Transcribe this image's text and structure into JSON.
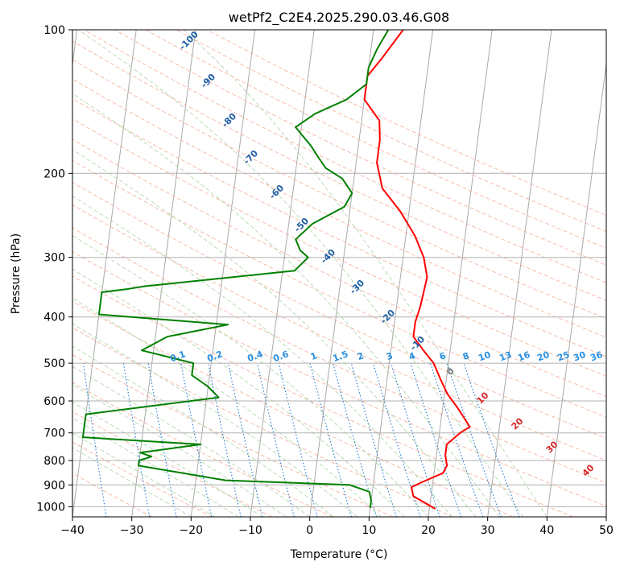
{
  "chart_data": {
    "type": "line",
    "title": "wetPf2_C2E4.2025.290.03.46.G08",
    "xlabel": "Temperature (°C)",
    "ylabel": "Pressure (hPa)",
    "xlim": [
      -40,
      50
    ],
    "ylim": [
      1050,
      100
    ],
    "y_scale": "log",
    "grid": true,
    "x_ticks": [
      "−40",
      "−30",
      "−20",
      "−10",
      "0",
      "10",
      "20",
      "30",
      "40",
      "50"
    ],
    "x_tick_values": [
      -40,
      -30,
      -20,
      -10,
      0,
      10,
      20,
      30,
      40,
      50
    ],
    "y_ticks": [
      "100",
      "200",
      "300",
      "400",
      "500",
      "600",
      "700",
      "800",
      "900",
      "1000"
    ],
    "y_tick_values": [
      100,
      200,
      300,
      400,
      500,
      600,
      700,
      800,
      900,
      1000
    ],
    "series": [
      {
        "color": "#ff0000",
        "points": [
          [
            21,
            1010
          ],
          [
            17,
            950
          ],
          [
            16.5,
            910
          ],
          [
            18,
            890
          ],
          [
            21.5,
            850
          ],
          [
            22,
            820
          ],
          [
            21.5,
            780
          ],
          [
            21.5,
            740
          ],
          [
            23.5,
            700
          ],
          [
            25,
            680
          ],
          [
            24,
            655
          ],
          [
            22.5,
            620
          ],
          [
            20.5,
            580
          ],
          [
            19,
            540
          ],
          [
            17.5,
            500
          ],
          [
            15.5,
            470
          ],
          [
            13.5,
            440
          ],
          [
            13.5,
            410
          ],
          [
            14,
            380
          ],
          [
            14.2,
            360
          ],
          [
            14.5,
            330
          ],
          [
            13.5,
            300
          ],
          [
            11.5,
            270
          ],
          [
            8.5,
            240
          ],
          [
            5,
            215
          ],
          [
            3.5,
            190
          ],
          [
            3.5,
            170
          ],
          [
            3,
            155
          ],
          [
            0,
            140
          ],
          [
            0,
            125
          ],
          [
            2,
            115
          ],
          [
            5,
            100
          ]
        ]
      },
      {
        "color": "#008000",
        "points": [
          [
            10,
            1005
          ],
          [
            10,
            970
          ],
          [
            9.5,
            930
          ],
          [
            6,
            900
          ],
          [
            -15,
            880
          ],
          [
            -30,
            820
          ],
          [
            -30,
            800
          ],
          [
            -28,
            785
          ],
          [
            -30,
            770
          ],
          [
            -20,
            740
          ],
          [
            -40,
            715
          ],
          [
            -40,
            640
          ],
          [
            -18,
            590
          ],
          [
            -20,
            560
          ],
          [
            -23,
            530
          ],
          [
            -23,
            500
          ],
          [
            -32,
            470
          ],
          [
            -28,
            440
          ],
          [
            -18,
            415
          ],
          [
            -40,
            395
          ],
          [
            -40,
            355
          ],
          [
            -36,
            350
          ],
          [
            -33,
            345
          ],
          [
            -8,
            320
          ],
          [
            -6,
            300
          ],
          [
            -7.5,
            290
          ],
          [
            -8.5,
            275
          ],
          [
            -6,
            255
          ],
          [
            -1,
            235
          ],
          [
            0,
            220
          ],
          [
            -2,
            205
          ],
          [
            -5,
            195
          ],
          [
            -6.5,
            185
          ],
          [
            -8,
            175
          ],
          [
            -11,
            160
          ],
          [
            -8,
            150
          ],
          [
            -3,
            140
          ],
          [
            0,
            130
          ],
          [
            0,
            120
          ],
          [
            1,
            110
          ],
          [
            2.5,
            100
          ]
        ]
      }
    ],
    "isotherm_labels": [
      "-100",
      "-90",
      "-80",
      "-70",
      "-60",
      "-50",
      "-40",
      "-30",
      "-20",
      "-10",
      "0",
      "10",
      "20",
      "30",
      "40"
    ],
    "mixing_ratio_labels": [
      "0.1",
      "0.2",
      "0.4",
      "0.6",
      "1",
      "1.5",
      "2",
      "3",
      "4",
      "6",
      "8",
      "10",
      "13",
      "16",
      "20",
      "25",
      "30",
      "36"
    ]
  }
}
